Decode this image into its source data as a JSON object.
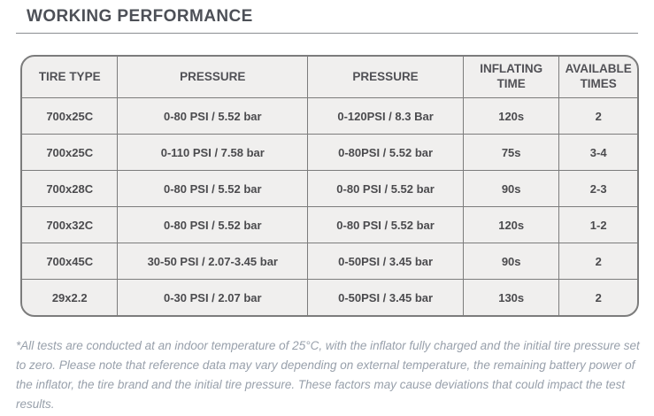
{
  "page": {
    "title": "WORKING PERFORMANCE",
    "footnote": "*All tests are conducted at an indoor temperature of 25°C, with the inflator fully charged and the initial tire pressure set to zero. Please note that reference data may vary depending on external temperature, the remaining battery power of the inflator, the tire brand and the initial tire pressure. These factors may cause deviations that could impact the test results."
  },
  "table": {
    "headers": [
      "TIRE TYPE",
      "PRESSURE",
      "PRESSURE",
      "INFLATING TIME",
      "AVAILABLE TIMES"
    ],
    "rows": [
      [
        "700x25C",
        "0-80 PSI / 5.52 bar",
        "0-120PSI / 8.3 Bar",
        "120s",
        "2"
      ],
      [
        "700x25C",
        "0-110 PSI / 7.58 bar",
        "0-80PSI / 5.52 bar",
        "75s",
        "3-4"
      ],
      [
        "700x28C",
        "0-80 PSI / 5.52 bar",
        "0-80 PSI / 5.52 bar",
        "90s",
        "2-3"
      ],
      [
        "700x32C",
        "0-80 PSI / 5.52 bar",
        "0-80 PSI / 5.52 bar",
        "120s",
        "1-2"
      ],
      [
        "700x45C",
        "30-50 PSI / 2.07-3.45 bar",
        "0-50PSI / 3.45 bar",
        "90s",
        "2"
      ],
      [
        "29x2.2",
        "0-30 PSI / 2.07 bar",
        "0-50PSI / 3.45 bar",
        "130s",
        "2"
      ]
    ]
  },
  "colors": {
    "title_text": "#4d5057",
    "rule_line": "#8a8d91",
    "table_border": "#7c7c7c",
    "cell_background": "#f0efee",
    "cell_text": "#4b4b4e",
    "footnote_text": "#98a0ab"
  }
}
